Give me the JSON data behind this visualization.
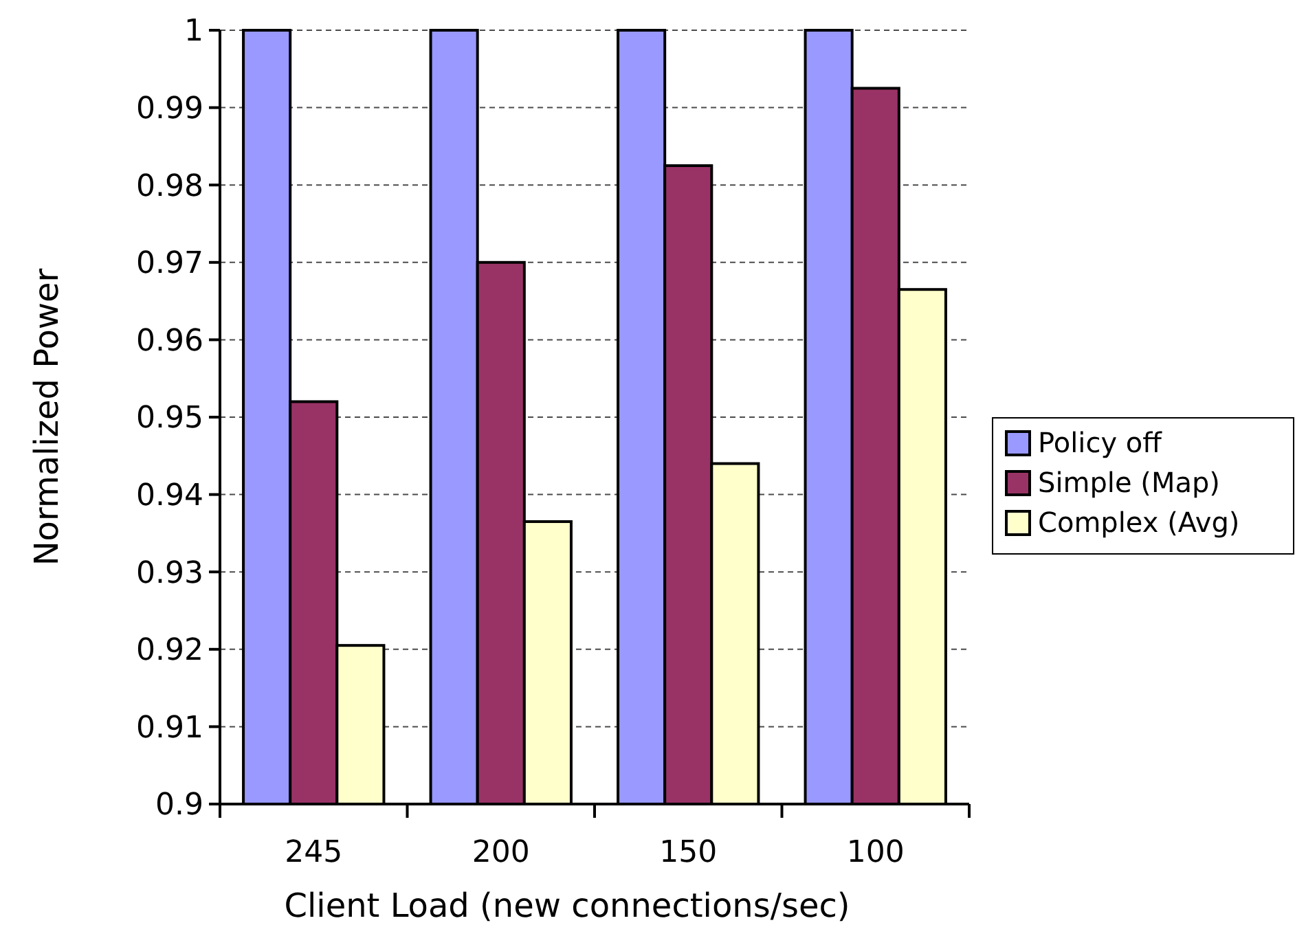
{
  "chart_data": {
    "type": "bar",
    "xlabel": "Client Load (new connections/sec)",
    "ylabel": "Normalized Power",
    "categories": [
      "245",
      "200",
      "150",
      "100"
    ],
    "series": [
      {
        "name": "Policy off",
        "color": "#9999ff",
        "values": [
          1,
          1,
          1,
          1
        ]
      },
      {
        "name": "Simple (Map)",
        "color": "#993366",
        "values": [
          0.952,
          0.97,
          0.9825,
          0.9925
        ]
      },
      {
        "name": "Complex (Avg)",
        "color": "#ffffcc",
        "values": [
          0.9205,
          0.9365,
          0.944,
          0.9665
        ]
      }
    ],
    "ylim": [
      0.9,
      1
    ],
    "yticks": [
      0.9,
      0.91,
      0.92,
      0.93,
      0.94,
      0.95,
      0.96,
      0.97,
      0.98,
      0.99,
      1
    ],
    "grid": "y",
    "legend": "right"
  }
}
